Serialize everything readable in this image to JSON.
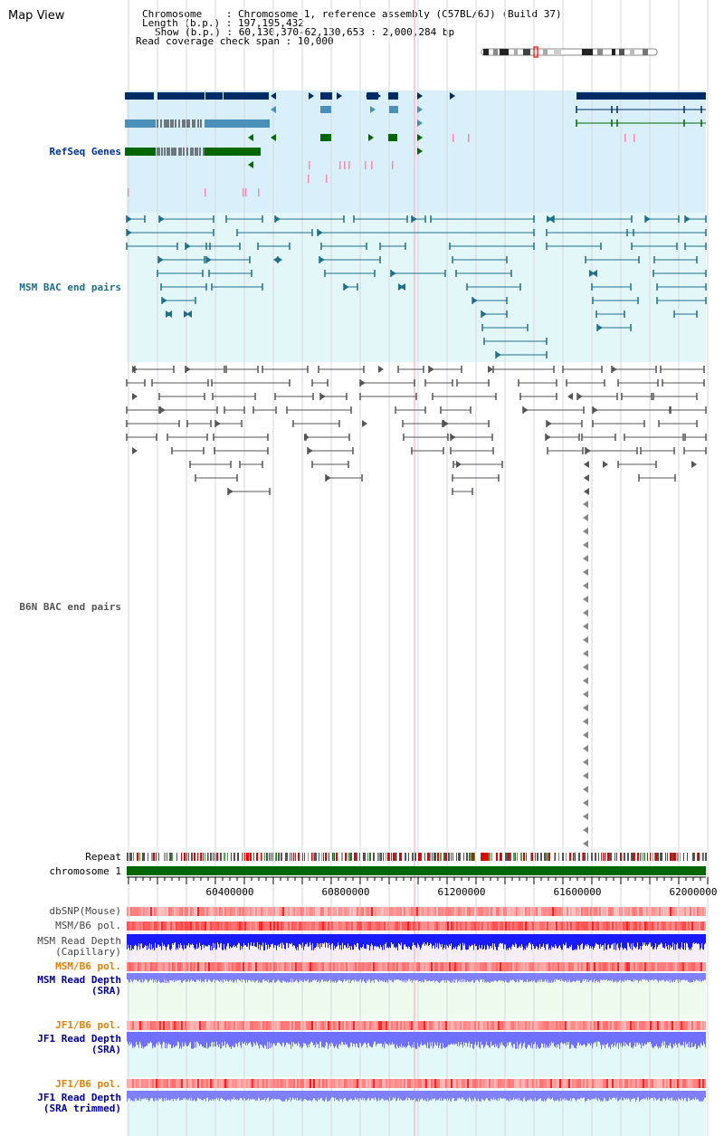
{
  "page": {
    "title": "Map View"
  },
  "header": {
    "chromosome_label": "Chromosome",
    "chromosome_value": "Chromosome 1, reference assembly (C57BL/6J) (Build 37)",
    "length_label": "Length (b.p.)",
    "length_value": "197,195,432",
    "show_label": "Show (b.p.)",
    "show_value": "60,130,370-62,130,653 : 2,000,284 bp",
    "coverage_label": "Read coverage check span",
    "coverage_value": "10,000",
    "separator": ":"
  },
  "tracks": {
    "refseq": {
      "label": "RefSeq Genes",
      "color": "#003399",
      "bg": "#d9f0fa"
    },
    "msm_bac": {
      "label": "MSM BAC end pairs",
      "color": "#1f6f8b",
      "bg": "#e3f7f9"
    },
    "b6n_bac": {
      "label": "B6N BAC end pairs",
      "color": "#555555"
    },
    "repeat": {
      "label": "Repeat"
    },
    "chromosome": {
      "label": "chromosome 1",
      "color": "#006600"
    },
    "dbsnp": {
      "label": "dbSNP(Mouse)",
      "color": "#444444"
    },
    "msm_b6_pol_1": {
      "label": "MSM/B6 pol.",
      "color": "#444444"
    },
    "msm_depth_cap": {
      "label_line1": "MSM Read Depth",
      "label_line2": "(Capillary)",
      "color": "#444444",
      "fill": "#1a1aff"
    },
    "msm_b6_pol_2": {
      "label": "MSM/B6 pol.",
      "color": "#e08000"
    },
    "msm_depth_sra": {
      "label_line1": "MSM Read Depth",
      "label_line2": "(SRA)",
      "color": "#000099",
      "fill": "#8080ff",
      "bg": "#eefaee"
    },
    "jf1_b6_pol_1": {
      "label": "JF1/B6 pol.",
      "color": "#e08000"
    },
    "jf1_depth_sra": {
      "label_line1": "JF1 Read Depth",
      "label_line2": "(SRA)",
      "color": "#000099",
      "fill": "#7070ff",
      "bg": "#e3f8f8"
    },
    "jf1_b6_pol_2": {
      "label": "JF1/B6 pol.",
      "color": "#e08000"
    },
    "jf1_depth_trim": {
      "label_line1": "JF1 Read Depth",
      "label_line2": "(SRA trimmed)",
      "color": "#000099",
      "fill": "#8080ff",
      "bg": "#e3f8f8"
    }
  },
  "axis": {
    "ticks": [
      {
        "pos": 60400000,
        "label": "60400000"
      },
      {
        "pos": 60800000,
        "label": "60800000"
      },
      {
        "pos": 61200000,
        "label": "61200000"
      },
      {
        "pos": 61600000,
        "label": "61600000"
      },
      {
        "pos": 62000000,
        "label": "62000000"
      }
    ],
    "start": 60130370,
    "end": 62130653
  },
  "colors": {
    "gene_dark": "#002b66",
    "gene_mid": "#4a90b8",
    "gene_green": "#006600",
    "pink": "#ff88aa",
    "grid": "#d8d8e0",
    "highlight": "#ffbbcc"
  }
}
